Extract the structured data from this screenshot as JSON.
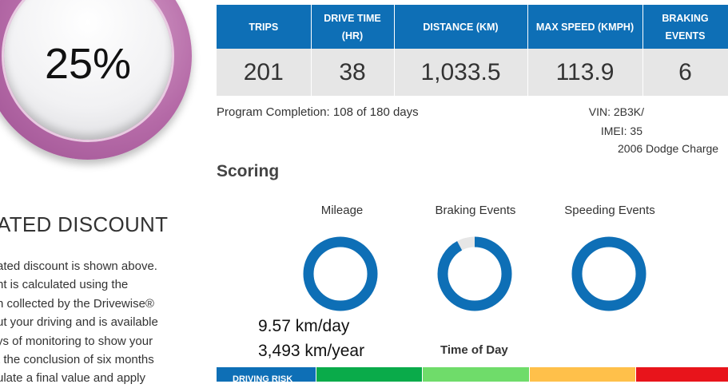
{
  "discount": {
    "value": "25%",
    "title": "ATED DISCOUNT",
    "lines": [
      "ated discount is shown above.",
      "nt is calculated using the",
      "n collected by the Drivewise®",
      "ut your driving and is available",
      "ys of monitoring to show your",
      "t the conclusion of six months",
      "ulate a final value and apply"
    ]
  },
  "stats": {
    "headers": [
      {
        "line1": "TRIPS",
        "line2": ""
      },
      {
        "line1": "DRIVE TIME",
        "line2": "(HR)"
      },
      {
        "line1": "DISTANCE (KM)",
        "line2": ""
      },
      {
        "line1": "MAX SPEED (KMPH)",
        "line2": ""
      },
      {
        "line1": "BRAKING",
        "line2": "EVENTS"
      }
    ],
    "values": [
      "201",
      "38",
      "1,033.5",
      "113.9",
      "6"
    ]
  },
  "program": {
    "completion": "Program Completion: 108 of 180 days",
    "vin": "VIN: 2B3K/",
    "imei": "IMEI: 35",
    "vehicle": "2006 Dodge Charge"
  },
  "scoring": {
    "title": "Scoring",
    "items": [
      {
        "label": "Mileage",
        "fraction": 1.0
      },
      {
        "label": "Braking Events",
        "fraction": 0.92
      },
      {
        "label": "Speeding Events",
        "fraction": 1.0
      }
    ],
    "mileage_per_day": "9.57 km/day",
    "mileage_per_year": "3,493 km/year",
    "time_of_day_title": "Time of Day"
  },
  "risk": {
    "label": "DRIVING RISK",
    "colors": [
      "#0aab4a",
      "#6fdc6a",
      "#ffc04a",
      "#e8141b"
    ]
  },
  "colors": {
    "primary": "#0e6fb6",
    "donut_track": "#e6e6e6",
    "badge": "#b56aa7"
  }
}
